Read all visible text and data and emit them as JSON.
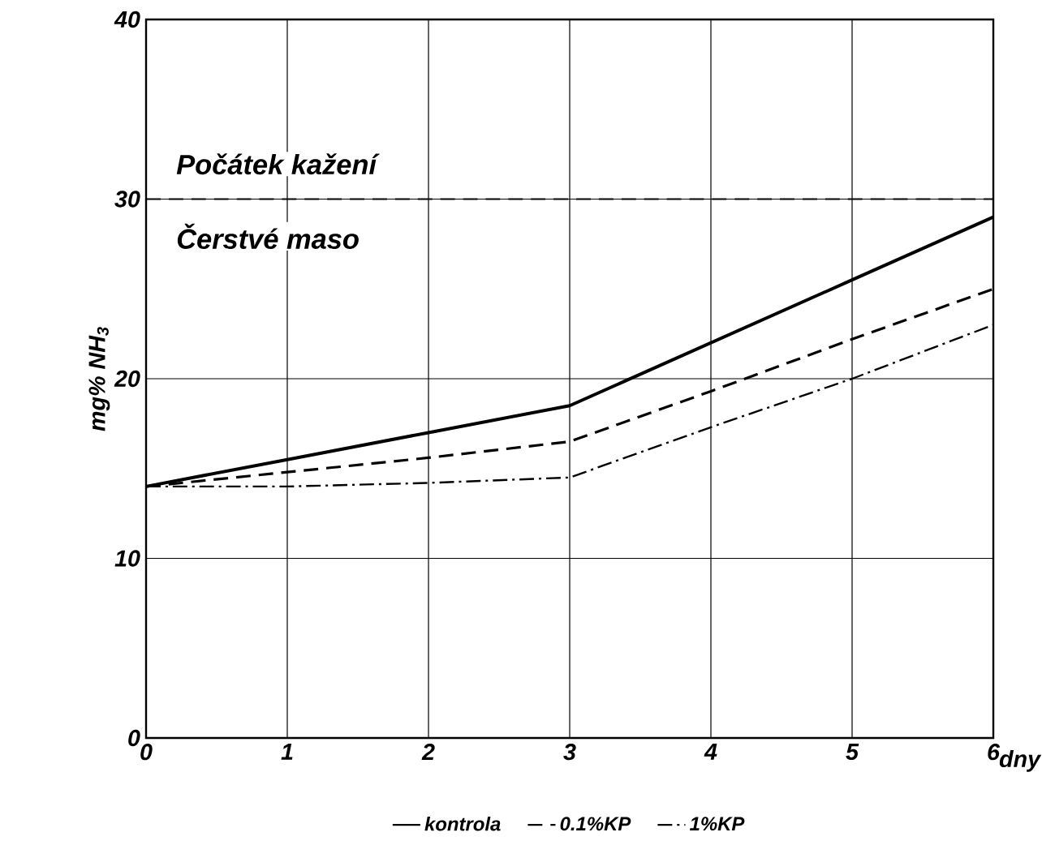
{
  "chart_data": {
    "type": "line",
    "xlabel": "dny",
    "ylabel": "mg% NH$_{3}$",
    "x": [
      0,
      1,
      2,
      3,
      4,
      5,
      6
    ],
    "series": [
      {
        "name": "kontrola",
        "color": "#000000",
        "line_style": "solid",
        "values": [
          14,
          15.5,
          17,
          18.5,
          22,
          25.5,
          29
        ]
      },
      {
        "name": "0.1%KP",
        "color": "#000000",
        "line_style": "dashed",
        "values": [
          14,
          14.8,
          15.6,
          16.5,
          19.3,
          22.2,
          25
        ]
      },
      {
        "name": "1%KP",
        "color": "#000000",
        "line_style": "dashdot",
        "values": [
          14,
          14,
          14.2,
          14.5,
          17.3,
          20,
          23
        ]
      }
    ],
    "xlim": [
      0,
      6
    ],
    "ylim": [
      0,
      40
    ],
    "xticks": [
      0,
      1,
      2,
      3,
      4,
      5,
      6
    ],
    "yticks": [
      0,
      10,
      20,
      30,
      40
    ],
    "ref_lines": [
      {
        "axis": "y",
        "value": 30,
        "line_style": "dashed"
      }
    ],
    "annotations": [
      "Počátek kažení",
      "Čerstvé maso"
    ],
    "grid": true,
    "legend": "bottom",
    "marker": "none"
  }
}
